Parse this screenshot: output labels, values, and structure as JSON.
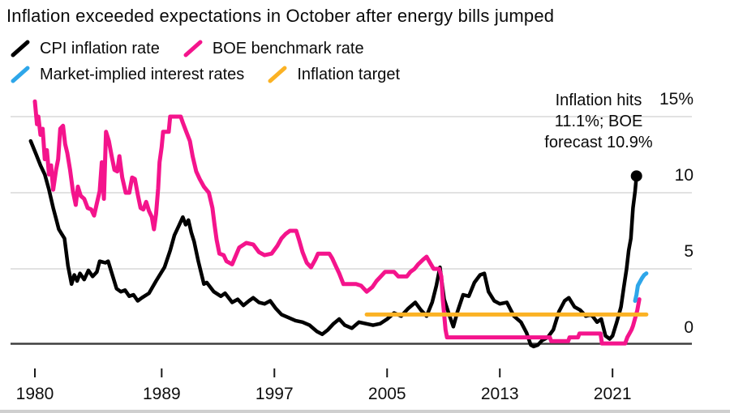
{
  "title": {
    "text": "Inflation exceeded expectations in October after energy bills jumped"
  },
  "legend": [
    {
      "label": "CPI inflation rate",
      "color": "#000000"
    },
    {
      "label": "BOE benchmark rate",
      "color": "#f4148c"
    },
    {
      "label": "Market-implied interest rates",
      "color": "#2ea6e9"
    },
    {
      "label": "Inflation target",
      "color": "#fbb224"
    }
  ],
  "icons": {
    "legend_marker": "slash"
  },
  "annotation": {
    "lines": [
      "Inflation hits",
      "11.1%; BOE",
      "forecast 10.9%"
    ]
  },
  "chart_data": {
    "type": "line",
    "title": "Inflation exceeded expectations in October after energy bills jumped",
    "xlabel": "",
    "ylabel": "percent",
    "grid": "horizontal",
    "legend_position": "top-left",
    "x_axis": {
      "ticks": [
        1980,
        1989,
        1997,
        2005,
        2013,
        2021
      ],
      "tick_labels": [
        "1980",
        "1989",
        "1997",
        "2005",
        "2013",
        "2021"
      ],
      "range": [
        1979.5,
        2023.8
      ]
    },
    "y_axis": {
      "ticks": [
        {
          "value": 15,
          "label": "15%"
        },
        {
          "value": 10,
          "label": "10"
        },
        {
          "value": 5,
          "label": "5"
        },
        {
          "value": 0,
          "label": "0"
        }
      ],
      "range": [
        -0.3,
        16.3
      ]
    },
    "colors": {
      "grid": "#d9d9d9",
      "axis": "#3f3f3f",
      "tick": "#1a1a1a"
    },
    "end_dot": {
      "series": "CPI inflation rate",
      "year": 2022.7,
      "value": 11.1,
      "color": "#000000"
    },
    "series": [
      {
        "id": "cpi-inflation-rate",
        "name": "CPI inflation rate",
        "color": "#000000",
        "stroke_width": 4.5,
        "points": [
          [
            1979.7,
            13.4
          ],
          [
            1980.1,
            12.5
          ],
          [
            1980.4,
            11.8
          ],
          [
            1980.7,
            11.2
          ],
          [
            1981.0,
            10.2
          ],
          [
            1981.3,
            9.0
          ],
          [
            1981.5,
            8.3
          ],
          [
            1981.7,
            7.6
          ],
          [
            1981.9,
            7.3
          ],
          [
            1982.1,
            7.0
          ],
          [
            1982.35,
            5.2
          ],
          [
            1982.6,
            4.0
          ],
          [
            1982.8,
            4.6
          ],
          [
            1983.0,
            4.2
          ],
          [
            1983.2,
            4.7
          ],
          [
            1983.5,
            4.3
          ],
          [
            1983.8,
            4.9
          ],
          [
            1984.1,
            4.5
          ],
          [
            1984.4,
            4.8
          ],
          [
            1984.6,
            5.5
          ],
          [
            1985.0,
            5.4
          ],
          [
            1985.2,
            5.5
          ],
          [
            1985.4,
            4.9
          ],
          [
            1985.8,
            3.7
          ],
          [
            1986.1,
            3.5
          ],
          [
            1986.4,
            3.6
          ],
          [
            1986.7,
            3.2
          ],
          [
            1987.0,
            3.3
          ],
          [
            1987.3,
            2.9
          ],
          [
            1987.6,
            3.1
          ],
          [
            1988.1,
            3.4
          ],
          [
            1988.6,
            4.2
          ],
          [
            1989.2,
            5.1
          ],
          [
            1989.6,
            6.2
          ],
          [
            1989.9,
            7.2
          ],
          [
            1990.2,
            7.8
          ],
          [
            1990.5,
            8.4
          ],
          [
            1990.7,
            7.9
          ],
          [
            1990.9,
            8.2
          ],
          [
            1991.1,
            7.4
          ],
          [
            1991.3,
            6.8
          ],
          [
            1991.6,
            5.5
          ],
          [
            1992.0,
            4.0
          ],
          [
            1992.2,
            4.1
          ],
          [
            1992.7,
            3.5
          ],
          [
            1993.2,
            3.2
          ],
          [
            1993.5,
            3.4
          ],
          [
            1994.0,
            2.8
          ],
          [
            1994.4,
            3.0
          ],
          [
            1994.8,
            2.6
          ],
          [
            1995.2,
            2.9
          ],
          [
            1995.5,
            3.1
          ],
          [
            1995.9,
            2.8
          ],
          [
            1996.3,
            2.7
          ],
          [
            1996.7,
            2.9
          ],
          [
            1997.1,
            2.4
          ],
          [
            1997.5,
            2.0
          ],
          [
            1998.0,
            1.8
          ],
          [
            1998.5,
            1.6
          ],
          [
            1999.0,
            1.5
          ],
          [
            1999.5,
            1.3
          ],
          [
            2000.0,
            0.9
          ],
          [
            2000.4,
            0.7
          ],
          [
            2000.8,
            1.0
          ],
          [
            2001.2,
            1.4
          ],
          [
            2001.6,
            1.7
          ],
          [
            2002.0,
            1.3
          ],
          [
            2002.5,
            1.1
          ],
          [
            2003.0,
            1.5
          ],
          [
            2003.5,
            1.4
          ],
          [
            2004.0,
            1.3
          ],
          [
            2004.5,
            1.4
          ],
          [
            2005.0,
            1.7
          ],
          [
            2005.5,
            2.1
          ],
          [
            2006.0,
            1.9
          ],
          [
            2006.5,
            2.4
          ],
          [
            2007.0,
            2.8
          ],
          [
            2007.4,
            2.3
          ],
          [
            2007.8,
            1.9
          ],
          [
            2008.2,
            2.8
          ],
          [
            2008.5,
            3.9
          ],
          [
            2008.75,
            5.1
          ],
          [
            2009.05,
            3.0
          ],
          [
            2009.4,
            2.0
          ],
          [
            2009.7,
            1.2
          ],
          [
            2010.0,
            2.2
          ],
          [
            2010.4,
            3.3
          ],
          [
            2010.8,
            3.2
          ],
          [
            2011.2,
            4.1
          ],
          [
            2011.6,
            4.6
          ],
          [
            2011.9,
            4.7
          ],
          [
            2012.2,
            3.5
          ],
          [
            2012.6,
            2.9
          ],
          [
            2013.0,
            2.7
          ],
          [
            2013.5,
            2.8
          ],
          [
            2014.0,
            1.9
          ],
          [
            2014.5,
            1.5
          ],
          [
            2014.9,
            0.8
          ],
          [
            2015.2,
            0.0
          ],
          [
            2015.4,
            -0.1
          ],
          [
            2015.7,
            0.0
          ],
          [
            2016.0,
            0.3
          ],
          [
            2016.4,
            0.5
          ],
          [
            2016.8,
            1.0
          ],
          [
            2017.2,
            2.2
          ],
          [
            2017.6,
            2.9
          ],
          [
            2017.9,
            3.1
          ],
          [
            2018.3,
            2.5
          ],
          [
            2018.7,
            2.3
          ],
          [
            2019.1,
            1.9
          ],
          [
            2019.5,
            2.0
          ],
          [
            2019.9,
            1.5
          ],
          [
            2020.2,
            1.7
          ],
          [
            2020.5,
            0.6
          ],
          [
            2020.8,
            0.4
          ],
          [
            2021.0,
            0.6
          ],
          [
            2021.3,
            1.5
          ],
          [
            2021.6,
            2.5
          ],
          [
            2021.8,
            3.8
          ],
          [
            2022.0,
            5.0
          ],
          [
            2022.15,
            6.2
          ],
          [
            2022.3,
            7.0
          ],
          [
            2022.45,
            9.0
          ],
          [
            2022.6,
            10.1
          ],
          [
            2022.7,
            11.1
          ]
        ]
      },
      {
        "id": "boe-benchmark-rate",
        "name": "BOE benchmark rate",
        "color": "#f4148c",
        "stroke_width": 5,
        "points": [
          [
            1980.0,
            16.0
          ],
          [
            1980.15,
            14.5
          ],
          [
            1980.25,
            15.0
          ],
          [
            1980.4,
            13.8
          ],
          [
            1980.55,
            14.2
          ],
          [
            1980.7,
            12.2
          ],
          [
            1980.85,
            12.8
          ],
          [
            1981.0,
            11.2
          ],
          [
            1981.15,
            11.8
          ],
          [
            1981.3,
            10.2
          ],
          [
            1981.5,
            11.5
          ],
          [
            1981.65,
            12.2
          ],
          [
            1981.8,
            14.2
          ],
          [
            1982.0,
            14.4
          ],
          [
            1982.15,
            13.2
          ],
          [
            1982.3,
            12.6
          ],
          [
            1982.5,
            11.5
          ],
          [
            1982.7,
            10.1
          ],
          [
            1982.9,
            9.2
          ],
          [
            1983.05,
            10.4
          ],
          [
            1983.25,
            9.8
          ],
          [
            1983.5,
            9.6
          ],
          [
            1983.75,
            9.0
          ],
          [
            1984.0,
            8.9
          ],
          [
            1984.2,
            8.5
          ],
          [
            1984.4,
            9.3
          ],
          [
            1984.6,
            10.1
          ],
          [
            1984.75,
            12.0
          ],
          [
            1984.9,
            9.6
          ],
          [
            1985.05,
            14.0
          ],
          [
            1985.25,
            13.4
          ],
          [
            1985.45,
            12.4
          ],
          [
            1985.65,
            11.5
          ],
          [
            1985.85,
            11.4
          ],
          [
            1986.0,
            12.4
          ],
          [
            1986.2,
            11.0
          ],
          [
            1986.45,
            10.0
          ],
          [
            1986.7,
            10.0
          ],
          [
            1986.9,
            11.0
          ],
          [
            1987.1,
            10.9
          ],
          [
            1987.3,
            9.9
          ],
          [
            1987.5,
            9.0
          ],
          [
            1987.7,
            8.9
          ],
          [
            1987.9,
            9.4
          ],
          [
            1988.1,
            8.8
          ],
          [
            1988.3,
            8.4
          ],
          [
            1988.45,
            7.6
          ],
          [
            1988.6,
            8.6
          ],
          [
            1988.75,
            10.3
          ],
          [
            1988.85,
            12.0
          ],
          [
            1989.0,
            13.0
          ],
          [
            1989.1,
            14.0
          ],
          [
            1989.5,
            14.0
          ],
          [
            1989.6,
            15.0
          ],
          [
            1990.35,
            15.0
          ],
          [
            1990.5,
            14.6
          ],
          [
            1990.75,
            14.0
          ],
          [
            1991.0,
            13.4
          ],
          [
            1991.2,
            12.4
          ],
          [
            1991.45,
            11.4
          ],
          [
            1991.7,
            10.9
          ],
          [
            1992.0,
            10.4
          ],
          [
            1992.35,
            10.0
          ],
          [
            1992.6,
            9.0
          ],
          [
            1992.75,
            7.9
          ],
          [
            1992.9,
            6.9
          ],
          [
            1993.1,
            6.0
          ],
          [
            1993.4,
            5.9
          ],
          [
            1993.6,
            5.5
          ],
          [
            1994.0,
            5.3
          ],
          [
            1994.5,
            6.4
          ],
          [
            1995.0,
            6.7
          ],
          [
            1995.5,
            6.6
          ],
          [
            1995.9,
            6.1
          ],
          [
            1996.3,
            5.9
          ],
          [
            1996.8,
            6.0
          ],
          [
            1997.2,
            6.5
          ],
          [
            1997.5,
            7.0
          ],
          [
            1997.8,
            7.3
          ],
          [
            1998.1,
            7.5
          ],
          [
            1998.55,
            7.5
          ],
          [
            1998.75,
            6.9
          ],
          [
            1999.0,
            6.1
          ],
          [
            1999.3,
            5.4
          ],
          [
            1999.6,
            5.1
          ],
          [
            1999.9,
            5.6
          ],
          [
            2000.1,
            6.0
          ],
          [
            2000.9,
            6.0
          ],
          [
            2001.1,
            5.7
          ],
          [
            2001.35,
            5.2
          ],
          [
            2001.6,
            4.7
          ],
          [
            2001.9,
            4.0
          ],
          [
            2002.8,
            4.0
          ],
          [
            2003.15,
            3.9
          ],
          [
            2003.55,
            3.5
          ],
          [
            2003.95,
            3.8
          ],
          [
            2004.25,
            4.2
          ],
          [
            2004.55,
            4.5
          ],
          [
            2004.85,
            4.8
          ],
          [
            2005.5,
            4.8
          ],
          [
            2005.8,
            4.5
          ],
          [
            2006.4,
            4.5
          ],
          [
            2006.65,
            4.8
          ],
          [
            2006.95,
            5.0
          ],
          [
            2007.2,
            5.3
          ],
          [
            2007.55,
            5.6
          ],
          [
            2007.8,
            5.8
          ],
          [
            2008.05,
            5.4
          ],
          [
            2008.3,
            5.0
          ],
          [
            2008.7,
            5.0
          ],
          [
            2008.85,
            4.5
          ],
          [
            2008.95,
            3.0
          ],
          [
            2009.05,
            2.0
          ],
          [
            2009.15,
            1.0
          ],
          [
            2009.25,
            0.5
          ],
          [
            2016.55,
            0.5
          ],
          [
            2016.65,
            0.25
          ],
          [
            2017.85,
            0.25
          ],
          [
            2017.95,
            0.5
          ],
          [
            2018.55,
            0.5
          ],
          [
            2018.65,
            0.75
          ],
          [
            2020.15,
            0.75
          ],
          [
            2020.25,
            0.1
          ],
          [
            2021.9,
            0.1
          ],
          [
            2021.95,
            0.25
          ],
          [
            2022.05,
            0.5
          ],
          [
            2022.2,
            0.75
          ],
          [
            2022.35,
            1.0
          ],
          [
            2022.45,
            1.25
          ],
          [
            2022.6,
            1.75
          ],
          [
            2022.75,
            2.25
          ],
          [
            2022.9,
            3.0
          ]
        ]
      },
      {
        "id": "inflation-target",
        "name": "Inflation target",
        "color": "#fbb224",
        "stroke_width": 5,
        "points": [
          [
            2003.55,
            2.0
          ],
          [
            2023.4,
            2.0
          ]
        ]
      },
      {
        "id": "market-implied-interest-rates",
        "name": "Market-implied interest rates",
        "color": "#2ea6e9",
        "stroke_width": 5,
        "points": [
          [
            2022.6,
            2.9
          ],
          [
            2022.7,
            3.3
          ],
          [
            2022.8,
            3.9
          ],
          [
            2022.95,
            4.15
          ],
          [
            2023.1,
            4.4
          ],
          [
            2023.25,
            4.6
          ],
          [
            2023.4,
            4.7
          ]
        ]
      }
    ]
  }
}
